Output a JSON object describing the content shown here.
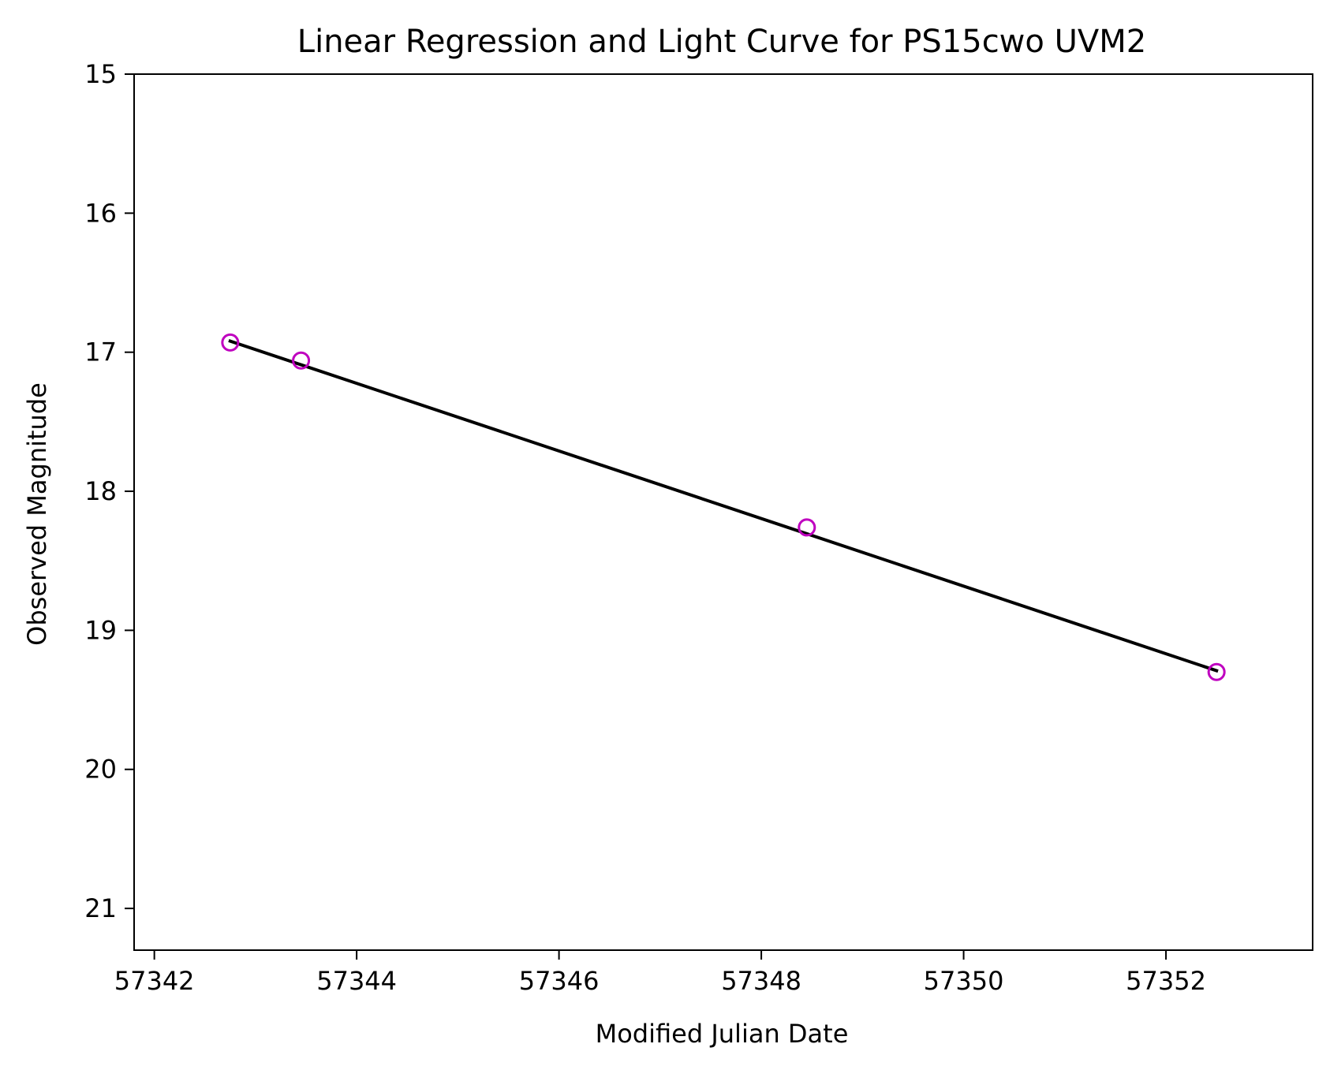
{
  "chart_data": {
    "type": "scatter",
    "title": "Linear Regression and Light Curve for PS15cwo UVM2",
    "xlabel": "Modified Julian Date",
    "ylabel": "Observed Magnitude",
    "xlim": [
      57341.8,
      57353.45
    ],
    "ylim": [
      15.0,
      21.3
    ],
    "y_inverted": true,
    "xticks": [
      57342,
      57344,
      57346,
      57348,
      57350,
      57352
    ],
    "yticks": [
      15,
      16,
      17,
      18,
      19,
      20,
      21
    ],
    "grid": false,
    "series": [
      {
        "kind": "points",
        "marker": "open-circle",
        "color": "#bf00bf",
        "x": [
          57342.75,
          57343.45,
          57348.45,
          57352.5
        ],
        "y": [
          16.93,
          17.06,
          18.26,
          19.3
        ]
      },
      {
        "kind": "regression-line",
        "color": "#000000",
        "x": [
          57342.75,
          57352.5
        ],
        "y": [
          16.92,
          19.29
        ]
      }
    ]
  }
}
